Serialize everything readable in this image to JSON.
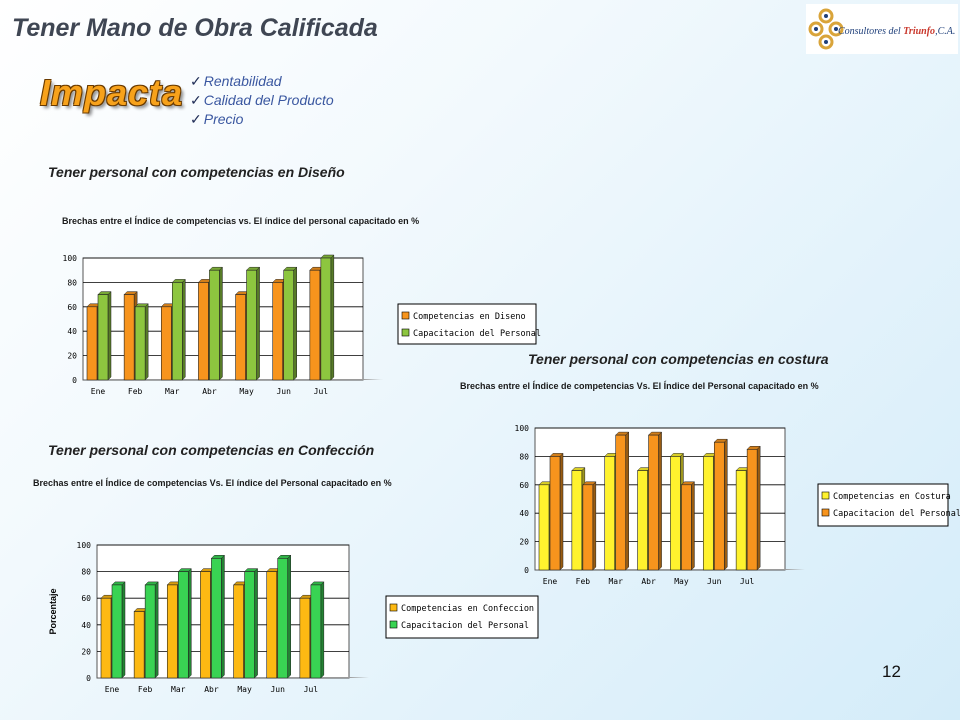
{
  "header": {
    "title": "Tener Mano de Obra Calificada",
    "logo": {
      "icon": "interlocking-knot-logo-icon",
      "text_a": "Consultores del ",
      "text_b": "Triunfo",
      "text_c": ",C.A."
    }
  },
  "impact": {
    "heading": "Impacta",
    "items": [
      "Rentabilidad",
      "Calidad del Producto",
      "Precio"
    ]
  },
  "sections": [
    {
      "title": "Tener personal con competencias en Diseño",
      "subtitle": "Brechas entre el Índice de competencias vs. El índice del personal capacitado en %"
    },
    {
      "title": "Tener personal con competencias en costura",
      "subtitle": "Brechas entre el Índice de competencias Vs.  El Índice del Personal capacitado en %"
    },
    {
      "title": "Tener personal con competencias en Confección",
      "subtitle": "Brechas entre el Índice de competencias Vs. El índice del Personal capacitado  en %"
    }
  ],
  "chart_data": [
    {
      "type": "bar",
      "categories": [
        "Ene",
        "Feb",
        "Mar",
        "Abr",
        "May",
        "Jun",
        "Jul"
      ],
      "series": [
        {
          "name": "Competencias en Diseno",
          "values": [
            60,
            70,
            60,
            80,
            70,
            80,
            90
          ],
          "color": "#f7941d"
        },
        {
          "name": "Capacitacion del Personal",
          "values": [
            70,
            60,
            80,
            90,
            90,
            90,
            100
          ],
          "color": "#8dc63f"
        }
      ],
      "ylim": [
        0,
        100
      ],
      "yticks": [
        "0",
        "20",
        "40",
        "60",
        "80",
        "100"
      ],
      "ylabel": "",
      "grid": true,
      "legend": "right"
    },
    {
      "type": "bar",
      "categories": [
        "Ene",
        "Feb",
        "Mar",
        "Abr",
        "May",
        "Jun",
        "Jul"
      ],
      "series": [
        {
          "name": "Competencias en Costura",
          "values": [
            60,
            70,
            80,
            70,
            80,
            80,
            70
          ],
          "color": "#fff22e"
        },
        {
          "name": "Capacitacion del Personal",
          "values": [
            80,
            60,
            95,
            95,
            60,
            90,
            85
          ],
          "color": "#f7941d"
        }
      ],
      "ylim": [
        0,
        100
      ],
      "yticks": [
        "0",
        "20",
        "40",
        "60",
        "80",
        "100"
      ],
      "ylabel": "",
      "grid": true,
      "legend": "right"
    },
    {
      "type": "bar",
      "categories": [
        "Ene",
        "Feb",
        "Mar",
        "Abr",
        "May",
        "Jun",
        "Jul"
      ],
      "series": [
        {
          "name": "Competencias en Confeccion",
          "values": [
            60,
            50,
            70,
            80,
            70,
            80,
            60
          ],
          "color": "#fdb913"
        },
        {
          "name": "Capacitacion del Personal",
          "values": [
            70,
            70,
            80,
            90,
            80,
            90,
            70
          ],
          "color": "#39d353"
        }
      ],
      "ylim": [
        0,
        100
      ],
      "yticks": [
        "0",
        "20",
        "40",
        "60",
        "80",
        "100"
      ],
      "ylabel": "Porcentaje",
      "grid": true,
      "legend": "right"
    }
  ],
  "footer": {
    "page_number": "12"
  }
}
